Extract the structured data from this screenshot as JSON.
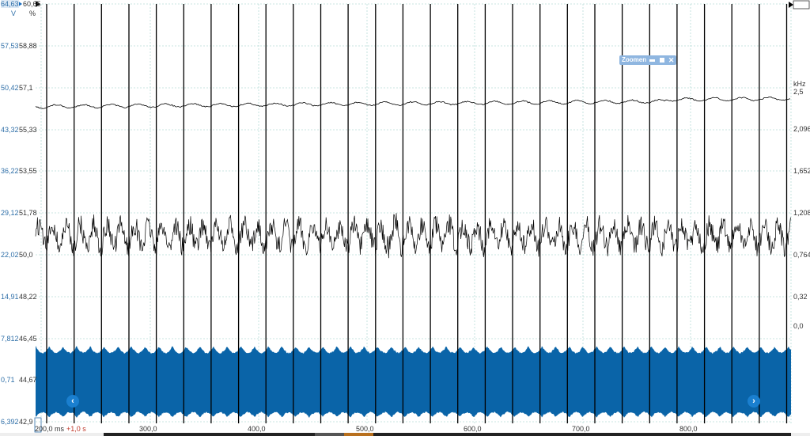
{
  "channels": {
    "voltage_unit": "V",
    "percent_unit": "%",
    "frequency_unit": "kHz",
    "voltage_ticks": [
      "64,63",
      "57,53",
      "50,42",
      "43,32",
      "36,22",
      "29,12",
      "22,02",
      "14,91",
      "7,812",
      "0,71",
      "6,392"
    ],
    "percent_ticks": [
      "60,65",
      "58,88",
      "57,1",
      "55,33",
      "53,55",
      "51,78",
      "50,0",
      "48,22",
      "46,45",
      "44,67",
      "42,9"
    ],
    "frequency_ticks": [
      "2,5",
      "2,096",
      "1,652",
      "1,208",
      "0,764",
      "0,32",
      "0,0"
    ]
  },
  "time_axis": {
    "start_label": "200,0 ms",
    "offset_label": "+1,0 s",
    "ticks": [
      "300,0",
      "400,0",
      "500,0",
      "600,0",
      "700,0",
      "800,0"
    ]
  },
  "zoom_panel": {
    "label": "Zoomen",
    "minimize_icon": "minimize-icon",
    "maximize_icon": "square-icon",
    "close_icon": "close-icon"
  },
  "navigation": {
    "prev_icon": "chevron-left-icon",
    "next_icon": "chevron-right-icon",
    "prev": "‹",
    "next": "›"
  },
  "colors": {
    "voltage_axis": "#2f6fa8",
    "blue_trace": "#0a64a8",
    "traces": "#000000",
    "timeline_highlight": "#b8701e"
  }
}
